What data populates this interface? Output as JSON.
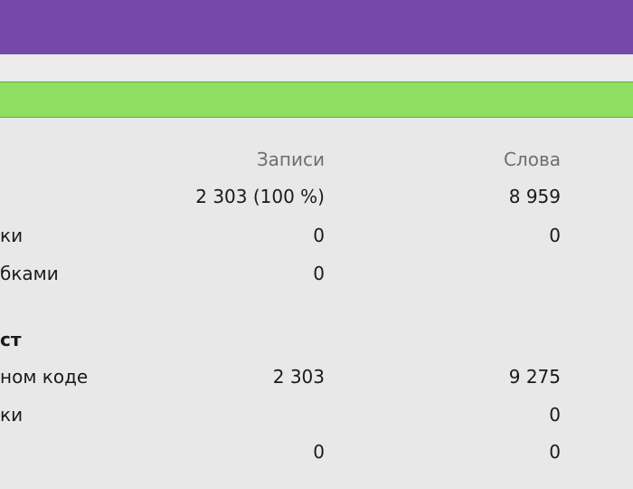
{
  "table": {
    "headers": {
      "records": "Записи",
      "words": "Слова"
    },
    "rows": [
      {
        "label": "",
        "records": "2 303 (100 %)",
        "words": "8 959"
      },
      {
        "label": "ки",
        "records": "0",
        "words": "0"
      },
      {
        "label": "бками",
        "records": "0",
        "words": ""
      },
      {
        "label": "ст",
        "records": "",
        "words": ""
      },
      {
        "label": "ном коде",
        "records": "2 303",
        "words": "9 275"
      },
      {
        "label": "ки",
        "records": "",
        "words": "0"
      },
      {
        "label": "",
        "records": "0",
        "words": "0"
      }
    ]
  }
}
